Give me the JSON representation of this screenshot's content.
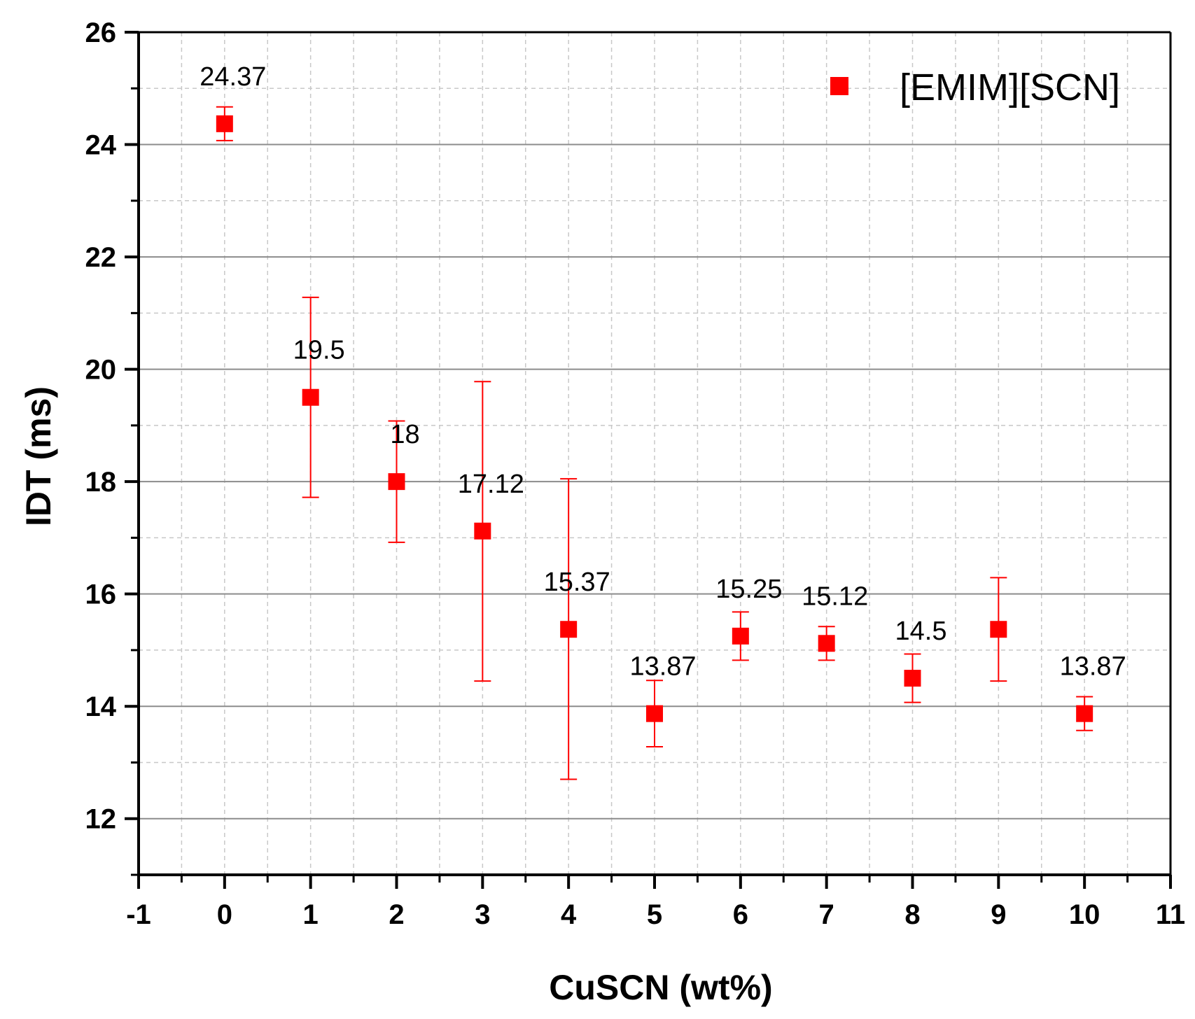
{
  "chart_data": {
    "type": "scatter",
    "xlabel": "CuSCN (wt%)",
    "ylabel": "IDT (ms)",
    "xlim": [
      -1,
      11
    ],
    "ylim": [
      11,
      26
    ],
    "xticks": [
      "-1",
      "0",
      "1",
      "2",
      "3",
      "4",
      "5",
      "6",
      "7",
      "8",
      "9",
      "10",
      "11"
    ],
    "yticks": [
      "12",
      "14",
      "16",
      "18",
      "20",
      "22",
      "24",
      "26"
    ],
    "grid": true,
    "legend_position": "top-right",
    "series": [
      {
        "name": "[EMIM][SCN]",
        "color": "#ff0000",
        "marker": "square",
        "x": [
          0,
          1,
          2,
          3,
          4,
          5,
          6,
          7,
          8,
          9,
          10
        ],
        "y": [
          24.37,
          19.5,
          18,
          17.12,
          15.37,
          13.87,
          15.25,
          15.12,
          14.5,
          15.37,
          13.87
        ],
        "yerr_low": [
          24.07,
          17.72,
          16.92,
          14.45,
          12.7,
          13.28,
          14.82,
          14.82,
          14.07,
          14.45,
          13.57
        ],
        "yerr_high": [
          24.67,
          21.28,
          19.08,
          19.78,
          18.05,
          14.46,
          15.68,
          15.42,
          14.93,
          16.29,
          14.17
        ],
        "labels": [
          "24.37",
          "19.5",
          "18",
          "17.12",
          "15.37",
          "13.87",
          "15.25",
          "15.12",
          "14.5",
          "",
          "13.87"
        ]
      }
    ]
  }
}
